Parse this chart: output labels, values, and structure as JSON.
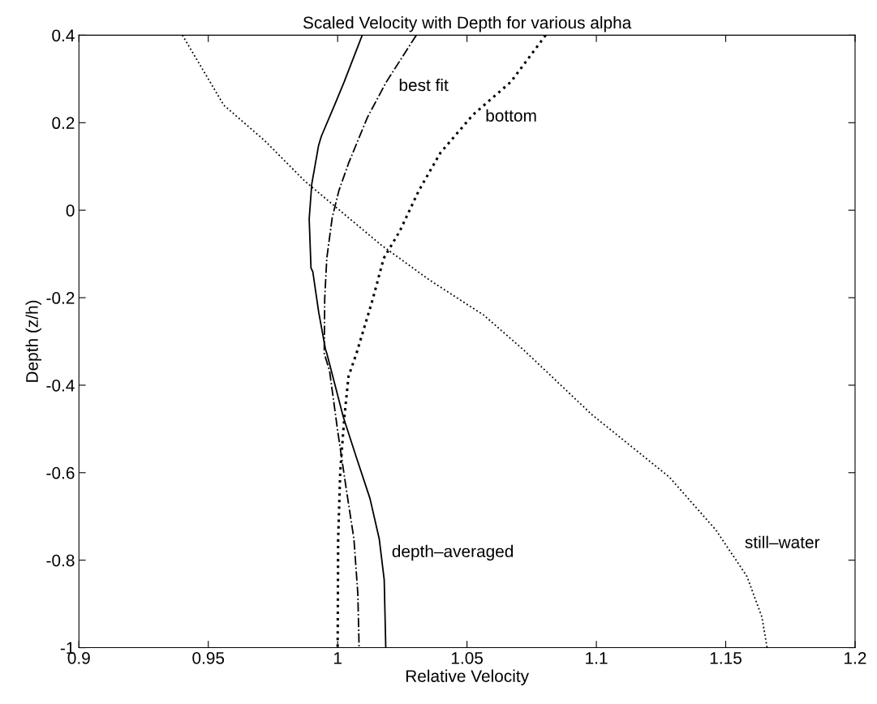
{
  "chart_data": {
    "type": "line",
    "title": "Scaled Velocity with Depth for various alpha",
    "xlabel": "Relative Velocity",
    "ylabel": "Depth (z/h)",
    "xlim": [
      0.9,
      1.2
    ],
    "ylim": [
      -1,
      0.4
    ],
    "xticks": [
      0.9,
      0.95,
      1,
      1.05,
      1.1,
      1.15,
      1.2
    ],
    "yticks": [
      -1,
      -0.8,
      -0.6,
      -0.4,
      -0.2,
      0,
      0.2,
      0.4
    ],
    "grid": false,
    "legend": false,
    "series": [
      {
        "name": "depth–averaged",
        "color": "#000000",
        "line_style": "solid",
        "x": [
          1.0095,
          1.0025,
          0.9988,
          0.9937,
          0.9926,
          0.99,
          0.989,
          0.9897,
          0.9904,
          0.9927,
          0.9953,
          0.9958,
          1.0022,
          1.0073,
          1.0125,
          1.0161,
          1.018,
          1.0186
        ],
        "values": [
          0.4,
          0.293,
          0.24,
          0.169,
          0.147,
          0.06,
          -0.02,
          -0.132,
          -0.141,
          -0.234,
          -0.318,
          -0.327,
          -0.473,
          -0.566,
          -0.659,
          -0.752,
          -0.845,
          -1
        ]
      },
      {
        "name": "best fit",
        "color": "#000000",
        "line_style": "dashdot",
        "x": [
          1.0304,
          1.0188,
          1.0115,
          1.0042,
          1.0005,
          0.9979,
          0.9958,
          0.995,
          0.9948,
          0.9969,
          1.0,
          1.0031,
          1.0063,
          1.0078,
          1.0083
        ],
        "values": [
          0.4,
          0.293,
          0.212,
          0.107,
          0.045,
          -0.017,
          -0.11,
          -0.203,
          -0.327,
          -0.368,
          -0.504,
          -0.628,
          -0.752,
          -0.876,
          -1
        ]
      },
      {
        "name": "bottom",
        "color": "#000000",
        "line_style": "dotted",
        "x": [
          1.0804,
          1.0669,
          1.0523,
          1.0397,
          1.0314,
          1.024,
          1.0178,
          1.0136,
          1.0073,
          1.0042,
          1.0026,
          1.001,
          1.0002,
          1.0
        ],
        "values": [
          0.4,
          0.293,
          0.218,
          0.131,
          0.045,
          -0.048,
          -0.11,
          -0.203,
          -0.327,
          -0.38,
          -0.473,
          -0.597,
          -0.752,
          -1
        ]
      },
      {
        "name": "still–water",
        "color": "#000000",
        "line_style": "dotted",
        "x": [
          0.94,
          0.956,
          0.9718,
          0.9874,
          1.0167,
          1.0356,
          1.0565,
          1.0722,
          1.0982,
          1.1282,
          1.1462,
          1.1582,
          1.164,
          1.166
        ],
        "values": [
          0.4,
          0.24,
          0.159,
          0.066,
          -0.079,
          -0.16,
          -0.24,
          -0.321,
          -0.467,
          -0.61,
          -0.731,
          -0.837,
          -0.93,
          -1
        ]
      }
    ]
  }
}
